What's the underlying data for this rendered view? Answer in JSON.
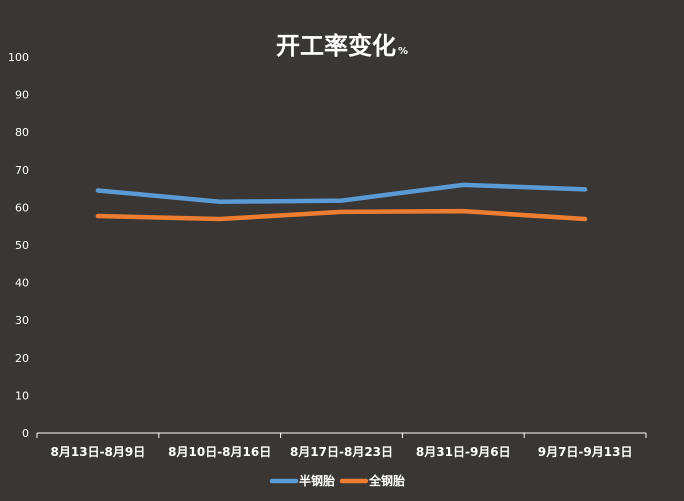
{
  "chart_data": {
    "type": "line",
    "title": "开工率变化",
    "title_unit": "%",
    "categories": [
      "8月13日-8月9日",
      "8月10日-8月16日",
      "8月17日-8月23日",
      "8月31日-9月6日",
      "9月7日-9月13日"
    ],
    "series": [
      {
        "name": "半钢胎",
        "color": "#5b9bd5",
        "values": [
          64.5,
          61.5,
          61.8,
          66.0,
          64.8
        ]
      },
      {
        "name": "全钢胎",
        "color": "#ed7d31",
        "values": [
          57.7,
          56.9,
          58.8,
          59.0,
          56.9
        ]
      }
    ],
    "ylim": [
      0,
      100
    ],
    "yticks": [
      0,
      10,
      20,
      30,
      40,
      50,
      60,
      70,
      80,
      90,
      100
    ],
    "grid": false,
    "legend_position": "bottom",
    "colors": {
      "background": "#3a3634",
      "text": "#ffffff",
      "axis": "#ffffff"
    }
  }
}
